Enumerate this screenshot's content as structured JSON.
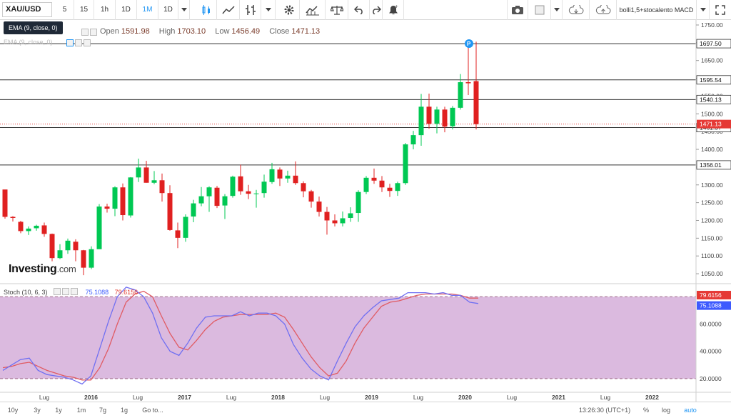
{
  "toolbar": {
    "symbol": "XAU/USD",
    "intervals": [
      "5",
      "15",
      "1h",
      "1D",
      "1M"
    ],
    "active_interval": "1M",
    "range": "1D",
    "indicators_label": "bolli1,5+stocalento MACD"
  },
  "tooltip": "EMA (9, close, 0)",
  "legend": {
    "open_label": "Open",
    "open": "1591.98",
    "high_label": "High",
    "high": "1703.10",
    "low_label": "Low",
    "low": "1456.49",
    "close_label": "Close",
    "close": "1471.13",
    "ema": "EMA (9, close, 0)"
  },
  "stoch": {
    "label": "Stoch (10, 6, 3)",
    "k": "75.1088",
    "d": "79.6156"
  },
  "logo": {
    "bold": "Investing",
    "rest": ".com"
  },
  "colors": {
    "up": "#00c853",
    "down": "#e02020",
    "stoch_k": "#6f6ff2",
    "stoch_d": "#e05b63",
    "stoch_fill": "#dbbadf",
    "price_tag_red": "#e53935"
  },
  "chart_data": {
    "type": "candlestick",
    "price_axis": [
      "1750.00",
      "1700.00",
      "1650.00",
      "1600.00",
      "1550.00",
      "1500.00",
      "1450.00",
      "1400.00",
      "1350.00",
      "1300.00",
      "1250.00",
      "1200.00",
      "1150.00",
      "1100.00",
      "1050.00"
    ],
    "ylim": [
      1022,
      1760
    ],
    "levels": [
      "1697.50",
      "1595.54",
      "1540.13",
      "1461.37",
      "1356.01"
    ],
    "last_price": "1471.13",
    "x_axis": [
      "Lug",
      "2016",
      "Lug",
      "2017",
      "Lug",
      "2018",
      "Lug",
      "2019",
      "Lug",
      "2020",
      "Lug",
      "2021",
      "Lug",
      "2022"
    ],
    "candles": [
      [
        1287,
        1210,
        1286,
        1205
      ],
      [
        1210,
        1207,
        1212,
        1197
      ],
      [
        1196,
        1170,
        1199,
        1164
      ],
      [
        1170,
        1177,
        1183,
        1159
      ],
      [
        1178,
        1185,
        1188,
        1171
      ],
      [
        1186,
        1162,
        1194,
        1154
      ],
      [
        1162,
        1094,
        1163,
        1085
      ],
      [
        1094,
        1116,
        1133,
        1091
      ],
      [
        1116,
        1143,
        1149,
        1106
      ],
      [
        1140,
        1116,
        1147,
        1085
      ],
      [
        1116,
        1067,
        1117,
        1046
      ],
      [
        1067,
        1119,
        1127,
        1063
      ],
      [
        1119,
        1239,
        1246,
        1120
      ],
      [
        1239,
        1233,
        1247,
        1222
      ],
      [
        1233,
        1293,
        1296,
        1212
      ],
      [
        1293,
        1215,
        1304,
        1200
      ],
      [
        1214,
        1321,
        1322,
        1208
      ],
      [
        1321,
        1349,
        1374,
        1308
      ],
      [
        1349,
        1306,
        1368,
        1306
      ],
      [
        1306,
        1313,
        1339,
        1302
      ],
      [
        1313,
        1277,
        1332,
        1253
      ],
      [
        1277,
        1173,
        1299,
        1171
      ],
      [
        1172,
        1151,
        1194,
        1122
      ],
      [
        1151,
        1210,
        1217,
        1140
      ],
      [
        1211,
        1248,
        1258,
        1195
      ],
      [
        1248,
        1268,
        1294,
        1240
      ],
      [
        1268,
        1293,
        1296,
        1224
      ],
      [
        1292,
        1241,
        1297,
        1235
      ],
      [
        1242,
        1268,
        1274,
        1204
      ],
      [
        1269,
        1323,
        1326,
        1264
      ],
      [
        1324,
        1282,
        1357,
        1272
      ],
      [
        1282,
        1275,
        1300,
        1260
      ],
      [
        1275,
        1276,
        1286,
        1236
      ],
      [
        1277,
        1309,
        1329,
        1264
      ],
      [
        1308,
        1344,
        1362,
        1303
      ],
      [
        1343,
        1318,
        1349,
        1297
      ],
      [
        1318,
        1326,
        1340,
        1306
      ],
      [
        1326,
        1305,
        1366,
        1300
      ],
      [
        1305,
        1282,
        1310,
        1265
      ],
      [
        1282,
        1253,
        1286,
        1236
      ],
      [
        1253,
        1224,
        1267,
        1211
      ],
      [
        1224,
        1200,
        1238,
        1160
      ],
      [
        1200,
        1192,
        1217,
        1183
      ],
      [
        1192,
        1206,
        1225,
        1183
      ],
      [
        1207,
        1220,
        1237,
        1196
      ],
      [
        1221,
        1280,
        1285,
        1196
      ],
      [
        1280,
        1320,
        1325,
        1274
      ],
      [
        1320,
        1312,
        1346,
        1303
      ],
      [
        1312,
        1293,
        1325,
        1280
      ],
      [
        1292,
        1283,
        1303,
        1266
      ],
      [
        1283,
        1305,
        1309,
        1269
      ],
      [
        1305,
        1414,
        1418,
        1300
      ],
      [
        1414,
        1440,
        1452,
        1400
      ],
      [
        1440,
        1520,
        1556,
        1410
      ],
      [
        1520,
        1472,
        1557,
        1458
      ],
      [
        1472,
        1512,
        1520,
        1445
      ],
      [
        1512,
        1464,
        1520,
        1448
      ],
      [
        1465,
        1517,
        1522,
        1456
      ],
      [
        1517,
        1589,
        1612,
        1512
      ],
      [
        1589,
        1586,
        1689,
        1553
      ],
      [
        1592,
        1471,
        1703,
        1456
      ]
    ]
  },
  "stoch_chart": {
    "ticks": [
      "80.0000",
      "60.0000",
      "40.0000",
      "20.0000"
    ],
    "ylim": [
      10,
      88
    ],
    "k": [
      26,
      30,
      34,
      35,
      26,
      23,
      22,
      21,
      19,
      16,
      22,
      42,
      62,
      80,
      87,
      85,
      80,
      68,
      50,
      40,
      37,
      46,
      57,
      65,
      66,
      66,
      66,
      69,
      66,
      68,
      68,
      66,
      60,
      45,
      35,
      27,
      22,
      19,
      33,
      46,
      58,
      66,
      72,
      77,
      78,
      79,
      83,
      83,
      83,
      82,
      83,
      81,
      81,
      76,
      75
    ],
    "d": [
      28,
      29,
      31,
      32,
      29,
      26,
      24,
      22,
      21,
      19,
      19,
      28,
      42,
      60,
      76,
      82,
      84,
      80,
      66,
      53,
      43,
      41,
      48,
      56,
      62,
      65,
      66,
      67,
      67,
      67,
      67,
      68,
      65,
      56,
      46,
      36,
      28,
      22,
      24,
      33,
      46,
      57,
      65,
      73,
      76,
      77,
      79,
      81,
      82,
      82,
      82,
      82,
      81,
      79,
      79
    ]
  },
  "current_level_tags": {
    "k": "75.1088",
    "d": "79.6156"
  },
  "bottom": {
    "ranges": [
      "10y",
      "3y",
      "1y",
      "1m",
      "7g",
      "1g"
    ],
    "goto": "Go to...",
    "time": "13:26:30 (UTC+1)",
    "percent": "%",
    "log": "log",
    "auto": "auto"
  }
}
